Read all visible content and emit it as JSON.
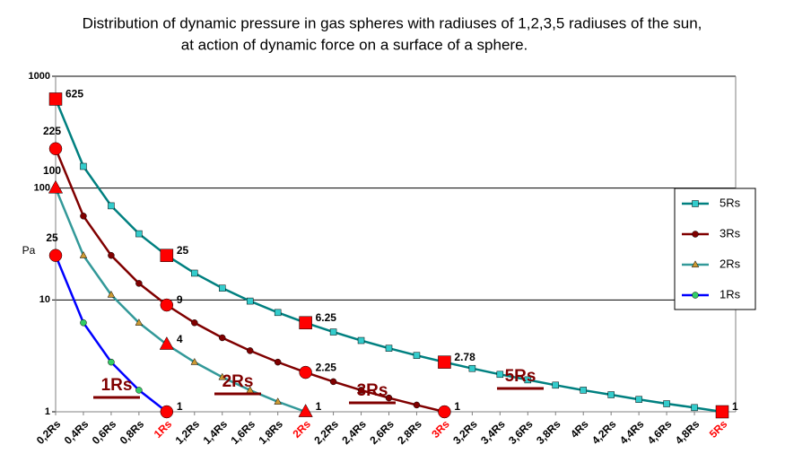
{
  "chart_data": {
    "type": "line",
    "title_lines": [
      "Distribution of dynamic pressure in gas spheres with radiuses of 1,2,3,5 radiuses of the sun,",
      "at action of dynamic force on a surface of a sphere."
    ],
    "y_label": "Pa",
    "log_y": true,
    "grid": true,
    "legend": "right",
    "highlight_color": "#ff0000",
    "ylim": [
      1,
      1000
    ],
    "yticks": [
      1,
      10,
      100,
      1000
    ],
    "categories": [
      "0,2Rs",
      "0,4Rs",
      "0,6Rs",
      "0,8Rs",
      "1Rs",
      "1,2Rs",
      "1,4Rs",
      "1,6Rs",
      "1,8Rs",
      "2Rs",
      "2,2Rs",
      "2,4Rs",
      "2,6Rs",
      "2,8Rs",
      "3Rs",
      "3,2Rs",
      "3,4Rs",
      "3,6Rs",
      "3,8Rs",
      "4Rs",
      "4,2Rs",
      "4,4Rs",
      "4,6Rs",
      "4,8Rs",
      "5Rs"
    ],
    "annotations": [
      "1Rs",
      "2Rs",
      "3Rs",
      "5Rs"
    ],
    "annotation_color": "#800000",
    "series": [
      {
        "name": "5Rs",
        "color": "#008080",
        "marker_color": "#33cccc",
        "marker": "square",
        "values": [
          625,
          156.25,
          69.44,
          39.06,
          25,
          17.36,
          12.76,
          9.77,
          7.72,
          6.25,
          5.17,
          4.34,
          3.7,
          3.19,
          2.78,
          2.44,
          2.16,
          1.93,
          1.73,
          1.56,
          1.42,
          1.29,
          1.18,
          1.09,
          1
        ],
        "value_labels": [
          "625",
          null,
          null,
          null,
          "25",
          null,
          null,
          null,
          null,
          "6.25",
          null,
          null,
          null,
          null,
          "2.78",
          null,
          null,
          null,
          null,
          null,
          null,
          null,
          null,
          null,
          "1"
        ]
      },
      {
        "name": "3Rs",
        "color": "#800000",
        "marker_color": "#800000",
        "marker": "circle",
        "values": [
          225,
          56.25,
          25,
          14.06,
          9,
          6.25,
          4.59,
          3.52,
          2.78,
          2.25,
          1.86,
          1.56,
          1.33,
          1.15,
          1,
          null,
          null,
          null,
          null,
          null,
          null,
          null,
          null,
          null,
          null
        ],
        "value_labels": [
          "225",
          null,
          null,
          null,
          "9",
          null,
          null,
          null,
          null,
          "2.25",
          null,
          null,
          null,
          null,
          "1",
          null,
          null,
          null,
          null,
          null,
          null,
          null,
          null,
          null,
          null
        ]
      },
      {
        "name": "2Rs",
        "color": "#339999",
        "marker_color": "#cc9933",
        "marker": "triangle",
        "values": [
          100,
          25,
          11.11,
          6.25,
          4,
          2.78,
          2.04,
          1.56,
          1.23,
          1,
          null,
          null,
          null,
          null,
          null,
          null,
          null,
          null,
          null,
          null,
          null,
          null,
          null,
          null,
          null
        ],
        "value_labels": [
          "100",
          null,
          null,
          null,
          "4",
          null,
          null,
          null,
          null,
          "1",
          null,
          null,
          null,
          null,
          null,
          null,
          null,
          null,
          null,
          null,
          null,
          null,
          null,
          null,
          null
        ]
      },
      {
        "name": "1Rs",
        "color": "#0000ff",
        "marker_color": "#33cc66",
        "marker": "circle",
        "values": [
          25,
          6.25,
          2.78,
          1.56,
          1,
          null,
          null,
          null,
          null,
          null,
          null,
          null,
          null,
          null,
          null,
          null,
          null,
          null,
          null,
          null,
          null,
          null,
          null,
          null,
          null
        ],
        "value_labels": [
          "25",
          null,
          null,
          null,
          "1",
          null,
          null,
          null,
          null,
          null,
          null,
          null,
          null,
          null,
          null,
          null,
          null,
          null,
          null,
          null,
          null,
          null,
          null,
          null,
          null
        ]
      }
    ]
  }
}
